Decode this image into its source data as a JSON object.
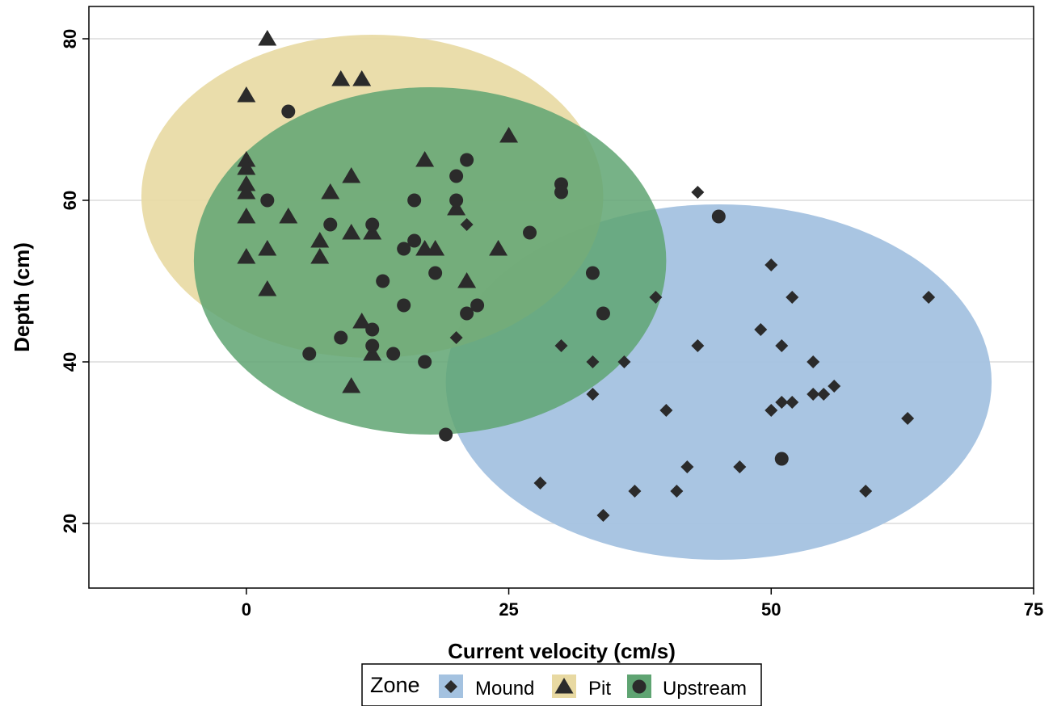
{
  "chart_data": {
    "type": "scatter",
    "title": "",
    "xlabel": "Current velocity (cm/s)",
    "ylabel": "Depth (cm)",
    "xlim": [
      -15,
      75
    ],
    "ylim": [
      12,
      84
    ],
    "xticks": [
      0,
      25,
      50,
      75
    ],
    "yticks": [
      20,
      40,
      60,
      80
    ],
    "grid": "horizontal",
    "legend": {
      "title": "Zone",
      "placement": "bottom"
    },
    "series": [
      {
        "name": "Mound",
        "marker": "diamond",
        "fill_color": "#a4c2e0",
        "ellipse": {
          "center": [
            45,
            37.5
          ],
          "semi_axes": [
            26,
            22
          ],
          "opacity": 0.95
        },
        "points": [
          [
            43,
            61
          ],
          [
            50,
            52
          ],
          [
            52,
            48
          ],
          [
            65,
            48
          ],
          [
            39,
            48
          ],
          [
            49,
            44
          ],
          [
            51,
            42
          ],
          [
            43,
            42
          ],
          [
            30,
            42
          ],
          [
            20,
            43
          ],
          [
            21,
            57
          ],
          [
            33,
            40
          ],
          [
            36,
            40
          ],
          [
            54,
            40
          ],
          [
            56,
            37
          ],
          [
            54,
            36
          ],
          [
            55,
            36
          ],
          [
            51,
            35
          ],
          [
            52,
            35
          ],
          [
            50,
            34
          ],
          [
            40,
            34
          ],
          [
            63,
            33
          ],
          [
            33,
            36
          ],
          [
            47,
            27
          ],
          [
            42,
            27
          ],
          [
            28,
            25
          ],
          [
            37,
            24
          ],
          [
            41,
            24
          ],
          [
            59,
            24
          ],
          [
            34,
            21
          ]
        ]
      },
      {
        "name": "Pit",
        "marker": "triangle",
        "fill_color": "#e8d9a2",
        "ellipse": {
          "center": [
            12,
            60.5
          ],
          "semi_axes": [
            22,
            20
          ],
          "opacity": 0.9
        },
        "points": [
          [
            2,
            80
          ],
          [
            9,
            75
          ],
          [
            11,
            75
          ],
          [
            0,
            73
          ],
          [
            25,
            68
          ],
          [
            0,
            65
          ],
          [
            0,
            64
          ],
          [
            17,
            65
          ],
          [
            10,
            63
          ],
          [
            0,
            62
          ],
          [
            0,
            61
          ],
          [
            8,
            61
          ],
          [
            20,
            59
          ],
          [
            0,
            58
          ],
          [
            4,
            58
          ],
          [
            10,
            56
          ],
          [
            12,
            56
          ],
          [
            7,
            55
          ],
          [
            2,
            54
          ],
          [
            17,
            54
          ],
          [
            18,
            54
          ],
          [
            24,
            54
          ],
          [
            0,
            53
          ],
          [
            7,
            53
          ],
          [
            21,
            50
          ],
          [
            2,
            49
          ],
          [
            11,
            45
          ],
          [
            12,
            41
          ],
          [
            10,
            37
          ]
        ]
      },
      {
        "name": "Upstream",
        "marker": "circle",
        "fill_color": "#5fa472",
        "ellipse": {
          "center": [
            17.5,
            52.5
          ],
          "semi_axes": [
            22.5,
            21.5
          ],
          "opacity": 0.85
        },
        "points": [
          [
            4,
            71
          ],
          [
            21,
            65
          ],
          [
            20,
            63
          ],
          [
            30,
            62
          ],
          [
            30,
            61
          ],
          [
            2,
            60
          ],
          [
            16,
            60
          ],
          [
            20,
            60
          ],
          [
            8,
            57
          ],
          [
            12,
            57
          ],
          [
            27,
            56
          ],
          [
            16,
            55
          ],
          [
            15,
            54
          ],
          [
            18,
            51
          ],
          [
            33,
            51
          ],
          [
            13,
            50
          ],
          [
            22,
            47
          ],
          [
            15,
            47
          ],
          [
            21,
            46
          ],
          [
            34,
            46
          ],
          [
            12,
            44
          ],
          [
            9,
            43
          ],
          [
            12,
            42
          ],
          [
            6,
            41
          ],
          [
            14,
            41
          ],
          [
            17,
            40
          ],
          [
            45,
            58
          ],
          [
            51,
            28
          ],
          [
            19,
            31
          ]
        ]
      }
    ]
  }
}
